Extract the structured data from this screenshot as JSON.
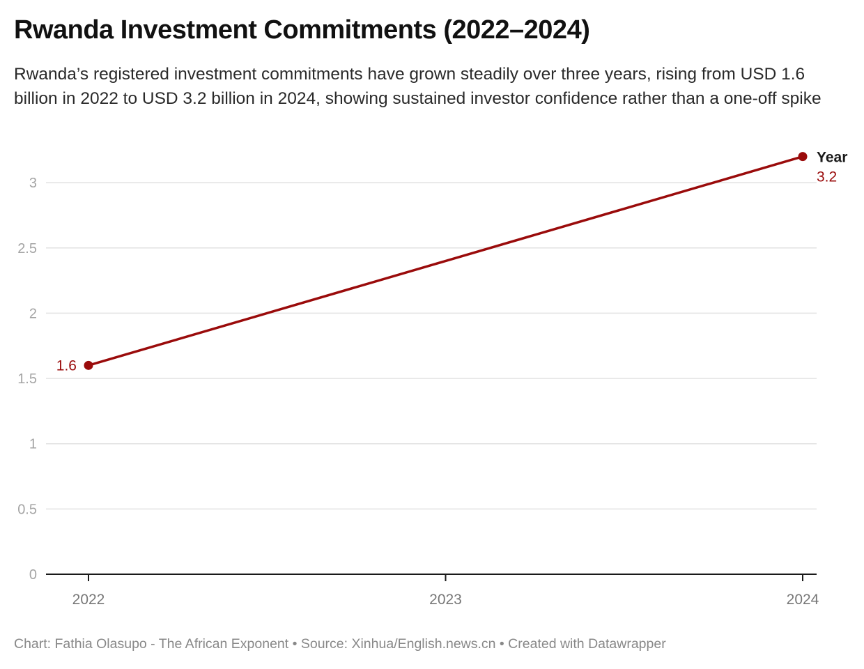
{
  "header": {
    "title": "Rwanda Investment Commitments (2022–2024)",
    "subtitle": "Rwanda’s registered investment commitments have grown steadily over three years, rising from USD 1.6 billion in 2022 to USD 3.2 billion in 2024, showing sustained investor confidence rather than a one-off spike"
  },
  "footer": {
    "text": "Chart: Fathia Olasupo - The African Exponent • Source: Xinhua/English.news.cn • Created with Datawrapper"
  },
  "colors": {
    "series": "#9a0b0b",
    "grid": "#e2e2e2",
    "axis": "#1a1a1a"
  },
  "chart_data": {
    "type": "line",
    "title": "Rwanda Investment Commitments (2022–2024)",
    "xlabel": "",
    "ylabel": "",
    "x": [
      "2022",
      "2023",
      "2024"
    ],
    "ylim": [
      0,
      3.2
    ],
    "yticks": [
      0,
      0.5,
      1,
      1.5,
      2,
      2.5,
      3
    ],
    "ytick_labels": [
      "0",
      "0.5",
      "1",
      "1.5",
      "2",
      "2.5",
      "3"
    ],
    "grid": true,
    "series": [
      {
        "name": "Year",
        "points": [
          {
            "x": "2022",
            "y": 1.6
          },
          {
            "x": "2024",
            "y": 3.2
          }
        ],
        "labels": {
          "first": "1.6",
          "last": "3.2"
        }
      }
    ],
    "legend": "inline-right-end"
  }
}
